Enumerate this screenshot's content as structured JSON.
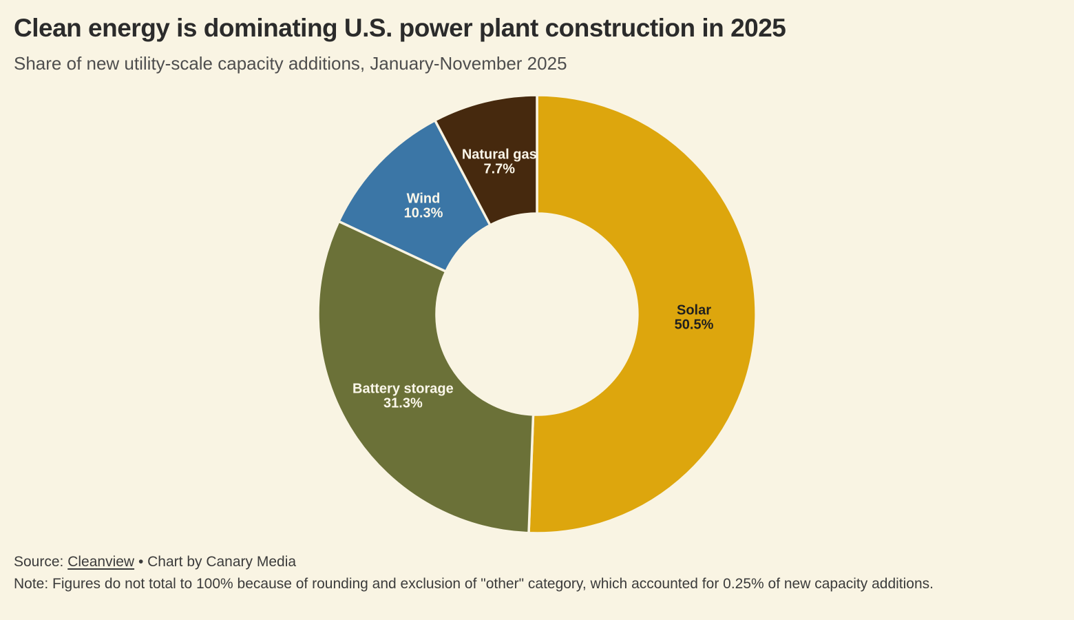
{
  "page": {
    "background_color": "#f9f4e3"
  },
  "header": {
    "title": "Clean energy is dominating U.S. power plant construction in 2025",
    "subtitle": "Share of new utility-scale capacity additions, January-November 2025"
  },
  "footer": {
    "source_prefix": "Source: ",
    "source_link": "Cleanview",
    "source_suffix": " • Chart by Canary Media",
    "note": "Note: Figures do not total to 100% because of rounding and exclusion of \"other\" category, which accounted for 0.25% of new capacity additions."
  },
  "chart_data": {
    "type": "pie",
    "subtype": "donut",
    "title": "Clean energy is dominating U.S. power plant construction in 2025",
    "subtitle": "Share of new utility-scale capacity additions, January-November 2025",
    "categories": [
      "Solar",
      "Battery storage",
      "Wind",
      "Natural gas"
    ],
    "values": [
      50.5,
      31.3,
      10.3,
      7.7
    ],
    "value_labels": [
      "50.5%",
      "31.3%",
      "10.3%",
      "7.7%"
    ],
    "colors": [
      "#dda60d",
      "#6b7138",
      "#3b76a6",
      "#46290e"
    ],
    "label_colors": [
      "#1f1f1f",
      "#fbf7ea",
      "#fbf7ea",
      "#fbf7ea"
    ],
    "start_angle_deg": 0,
    "direction": "clockwise",
    "inner_radius_ratio": 0.459,
    "outer_radius_px": 318,
    "inner_radius_px": 146,
    "label_radius_px": 228,
    "slice_gap_color": "#f9f4e3",
    "legend": "none",
    "excluded_other_pct": 0.25
  }
}
